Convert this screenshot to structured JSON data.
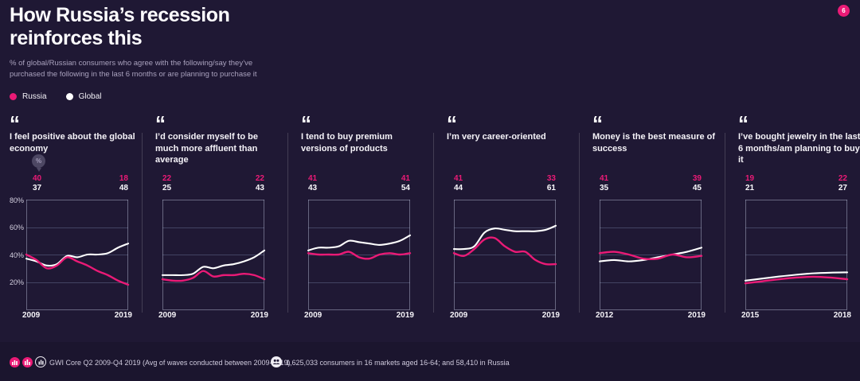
{
  "slide": {
    "badge": "6",
    "title_lines": [
      "How Russia’s recession",
      "reinforces this"
    ],
    "subtitle_lines": [
      "% of global/Russian consumers who agree with the following/say they’ve",
      "purchased the following in the last 6 months or are planning to purchase it"
    ]
  },
  "legend": {
    "items": [
      {
        "label": "Russia",
        "color": "#ea1a76"
      },
      {
        "label": "Global",
        "color": "#ffffff"
      }
    ]
  },
  "icons": {
    "quote": "“",
    "balloon_label": "%"
  },
  "colors": {
    "background": "#1f1834",
    "russia": "#ea1a76",
    "global": "#ffffff",
    "grid": "rgba(150,168,205,0.30)",
    "box": "rgba(190,198,222,0.45)"
  },
  "chart_data": [
    {
      "type": "line",
      "title": "I feel positive about the global economy",
      "x": [
        2009,
        2010,
        2011,
        2012,
        2013,
        2014,
        2015,
        2016,
        2017,
        2018,
        2019
      ],
      "x_start_label": "2009",
      "x_end_label": "2019",
      "ylim": [
        0,
        80
      ],
      "y_gridlines": [
        0,
        20,
        40,
        60,
        80
      ],
      "y_ticks": [
        "80%",
        "60%",
        "40%",
        "20%"
      ],
      "series": [
        {
          "name": "Russia",
          "color_key": "russia",
          "start_label": "40",
          "end_label": "18",
          "values": [
            40,
            36,
            30,
            32,
            38,
            35,
            32,
            28,
            25,
            21,
            18
          ]
        },
        {
          "name": "Global",
          "color_key": "global",
          "start_label": "37",
          "end_label": "48",
          "values": [
            37,
            35,
            32,
            33,
            39,
            38,
            40,
            40,
            41,
            45,
            48
          ]
        }
      ]
    },
    {
      "type": "line",
      "title": "I’d consider myself to be much more affluent than average",
      "x": [
        2009,
        2010,
        2011,
        2012,
        2013,
        2014,
        2015,
        2016,
        2017,
        2018,
        2019
      ],
      "x_start_label": "2009",
      "x_end_label": "2019",
      "ylim": [
        0,
        80
      ],
      "y_gridlines": [
        0,
        20,
        40,
        60,
        80
      ],
      "series": [
        {
          "name": "Russia",
          "color_key": "russia",
          "start_label": "22",
          "end_label": "22",
          "values": [
            22,
            21,
            21,
            23,
            28,
            24,
            25,
            25,
            26,
            25,
            22
          ]
        },
        {
          "name": "Global",
          "color_key": "global",
          "start_label": "25",
          "end_label": "43",
          "values": [
            25,
            25,
            25,
            26,
            31,
            30,
            32,
            33,
            35,
            38,
            43
          ]
        }
      ]
    },
    {
      "type": "line",
      "title": "I tend to buy premium versions of products",
      "x": [
        2009,
        2010,
        2011,
        2012,
        2013,
        2014,
        2015,
        2016,
        2017,
        2018,
        2019
      ],
      "x_start_label": "2009",
      "x_end_label": "2019",
      "ylim": [
        0,
        80
      ],
      "y_gridlines": [
        0,
        20,
        40,
        60,
        80
      ],
      "series": [
        {
          "name": "Russia",
          "color_key": "russia",
          "start_label": "41",
          "end_label": "41",
          "values": [
            41,
            40,
            40,
            40,
            42,
            38,
            37,
            40,
            41,
            40,
            41
          ]
        },
        {
          "name": "Global",
          "color_key": "global",
          "start_label": "43",
          "end_label": "54",
          "values": [
            43,
            45,
            45,
            46,
            50,
            49,
            48,
            47,
            48,
            50,
            54
          ]
        }
      ]
    },
    {
      "type": "line",
      "title": "I’m very career-oriented",
      "x": [
        2009,
        2010,
        2011,
        2012,
        2013,
        2014,
        2015,
        2016,
        2017,
        2018,
        2019
      ],
      "x_start_label": "2009",
      "x_end_label": "2019",
      "ylim": [
        0,
        80
      ],
      "y_gridlines": [
        0,
        20,
        40,
        60,
        80
      ],
      "series": [
        {
          "name": "Russia",
          "color_key": "russia",
          "start_label": "41",
          "end_label": "33",
          "values": [
            41,
            39,
            44,
            51,
            52,
            46,
            42,
            42,
            36,
            33,
            33
          ]
        },
        {
          "name": "Global",
          "color_key": "global",
          "start_label": "44",
          "end_label": "61",
          "values": [
            44,
            44,
            46,
            56,
            59,
            58,
            57,
            57,
            57,
            58,
            61
          ]
        }
      ]
    },
    {
      "type": "line",
      "title": "Money is the best measure of success",
      "x": [
        2012,
        2013,
        2014,
        2015,
        2016,
        2017,
        2018,
        2019
      ],
      "x_start_label": "2012",
      "x_end_label": "2019",
      "ylim": [
        0,
        80
      ],
      "y_gridlines": [
        0,
        20,
        40,
        60,
        80
      ],
      "series": [
        {
          "name": "Russia",
          "color_key": "russia",
          "start_label": "41",
          "end_label": "39",
          "values": [
            41,
            42,
            40,
            37,
            37,
            40,
            38,
            39
          ]
        },
        {
          "name": "Global",
          "color_key": "global",
          "start_label": "35",
          "end_label": "45",
          "values": [
            35,
            36,
            35,
            36,
            38,
            40,
            42,
            45
          ]
        }
      ]
    },
    {
      "type": "line",
      "title": "I’ve bought jewelry in the last 6 months/am planning to buy it",
      "x": [
        2015,
        2015.5,
        2016,
        2016.5,
        2017,
        2017.5,
        2018
      ],
      "x_start_label": "2015",
      "x_end_label": "2018",
      "ylim": [
        0,
        80
      ],
      "y_gridlines": [
        0,
        20,
        40,
        60,
        80
      ],
      "series": [
        {
          "name": "Russia",
          "color_key": "russia",
          "start_label": "19",
          "end_label": "22",
          "values": [
            19,
            20.5,
            22,
            23.2,
            23.8,
            23.2,
            22
          ]
        },
        {
          "name": "Global",
          "color_key": "global",
          "start_label": "21",
          "end_label": "27",
          "values": [
            21,
            22.5,
            24,
            25.3,
            26.3,
            26.8,
            27
          ]
        }
      ]
    }
  ],
  "footer": {
    "source_text": "GWI Core Q2 2009-Q4 2019 (Avg of waves conducted between 2009-2019)",
    "audience_text": "1,625,033 consumers in 16 markets aged 16-64; and 58,410 in Russia"
  }
}
